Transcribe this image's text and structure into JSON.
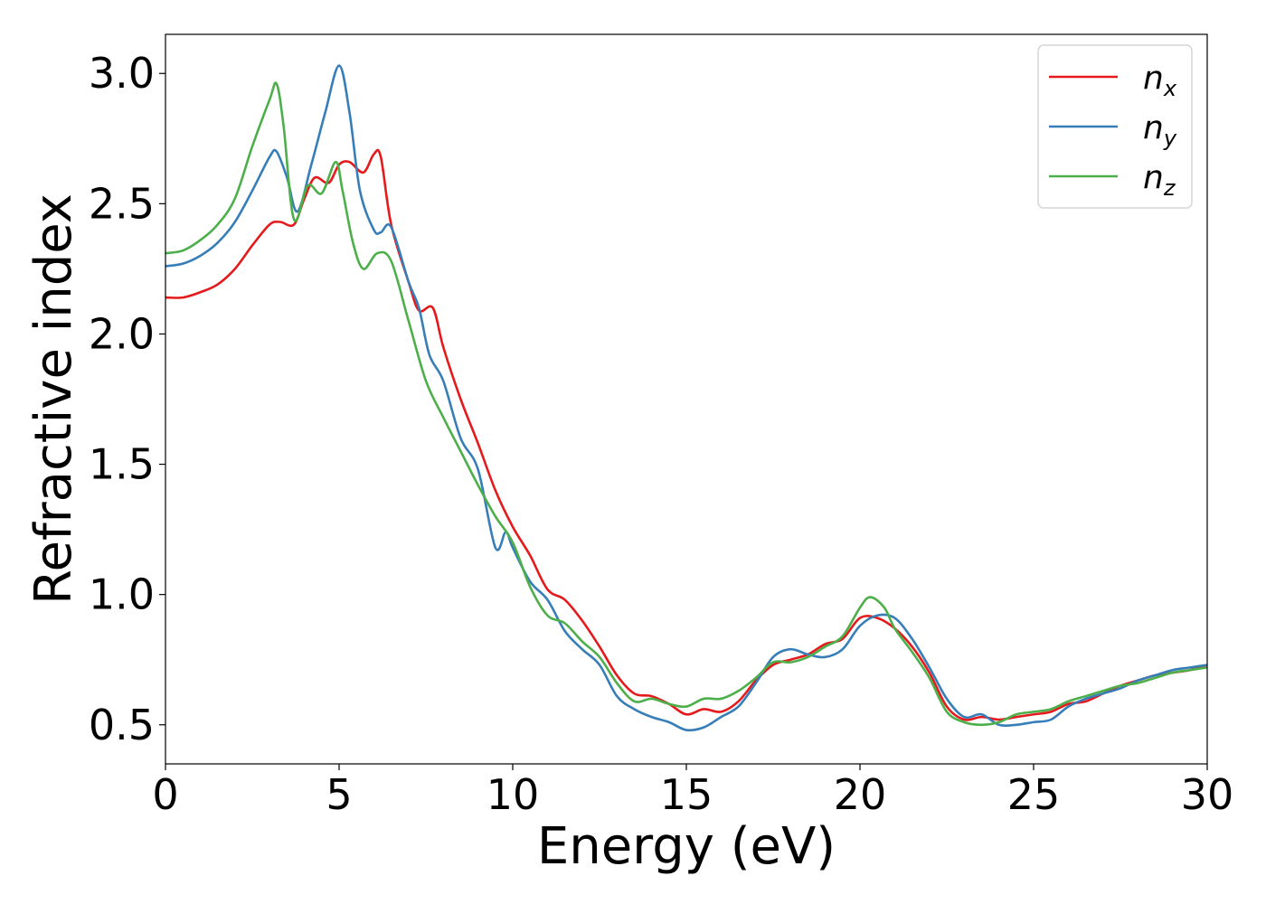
{
  "chart_data": {
    "type": "line",
    "title": "",
    "xlabel": "Energy (eV)",
    "ylabel": "Refractive index",
    "xlim": [
      0,
      30
    ],
    "ylim": [
      0.35,
      3.15
    ],
    "xticks": [
      0,
      5,
      10,
      15,
      20,
      25,
      30
    ],
    "xtick_labels": [
      "0",
      "5",
      "10",
      "15",
      "20",
      "25",
      "30"
    ],
    "yticks": [
      0.5,
      1.0,
      1.5,
      2.0,
      2.5,
      3.0
    ],
    "ytick_labels": [
      "0.5",
      "1.0",
      "1.5",
      "2.0",
      "2.5",
      "3.0"
    ],
    "grid": false,
    "legend_position": "top-right",
    "series": [
      {
        "name": "n",
        "subscript": "x",
        "color": "#e41a1c",
        "x": [
          0,
          0.5,
          1,
          1.5,
          2,
          2.5,
          3,
          3.3,
          3.7,
          4,
          4.3,
          4.7,
          5,
          5.3,
          5.7,
          6,
          6.2,
          6.5,
          7,
          7.3,
          7.7,
          8,
          8.5,
          9,
          9.5,
          10,
          10.5,
          11,
          11.5,
          12,
          12.5,
          13,
          13.5,
          14,
          14.5,
          15,
          15.5,
          16,
          16.5,
          17,
          17.5,
          18,
          18.5,
          19,
          19.5,
          20,
          20.5,
          21,
          21.5,
          22,
          22.5,
          23,
          23.5,
          24,
          24.5,
          25,
          25.5,
          26,
          26.5,
          27,
          27.5,
          28,
          28.5,
          29,
          29.5,
          30
        ],
        "values": [
          2.14,
          2.14,
          2.16,
          2.19,
          2.25,
          2.34,
          2.42,
          2.43,
          2.42,
          2.52,
          2.6,
          2.58,
          2.65,
          2.66,
          2.62,
          2.69,
          2.68,
          2.42,
          2.2,
          2.09,
          2.1,
          1.95,
          1.75,
          1.58,
          1.4,
          1.26,
          1.15,
          1.02,
          0.98,
          0.9,
          0.8,
          0.69,
          0.62,
          0.61,
          0.58,
          0.54,
          0.56,
          0.55,
          0.59,
          0.67,
          0.73,
          0.75,
          0.77,
          0.81,
          0.83,
          0.91,
          0.91,
          0.87,
          0.8,
          0.7,
          0.57,
          0.52,
          0.53,
          0.52,
          0.53,
          0.54,
          0.55,
          0.58,
          0.59,
          0.62,
          0.65,
          0.67,
          0.69,
          0.7,
          0.71,
          0.73
        ]
      },
      {
        "name": "n",
        "subscript": "y",
        "color": "#377eb8",
        "x": [
          0,
          0.5,
          1,
          1.5,
          2,
          2.5,
          3,
          3.2,
          3.5,
          3.8,
          4.2,
          4.6,
          5,
          5.3,
          5.6,
          6,
          6.2,
          6.5,
          7,
          7.3,
          7.6,
          8,
          8.5,
          9,
          9.5,
          9.8,
          10,
          10.5,
          11,
          11.5,
          12,
          12.5,
          13,
          13.5,
          14,
          14.5,
          15,
          15.5,
          16,
          16.5,
          17,
          17.5,
          18,
          18.5,
          19,
          19.5,
          20,
          20.5,
          21,
          21.5,
          22,
          22.5,
          23,
          23.5,
          24,
          24.5,
          25,
          25.5,
          26,
          26.5,
          27,
          27.5,
          28,
          28.5,
          29,
          29.5,
          30
        ],
        "values": [
          2.26,
          2.27,
          2.3,
          2.35,
          2.43,
          2.55,
          2.68,
          2.7,
          2.6,
          2.47,
          2.65,
          2.85,
          3.03,
          2.85,
          2.55,
          2.4,
          2.39,
          2.41,
          2.2,
          2.1,
          1.92,
          1.82,
          1.6,
          1.48,
          1.18,
          1.24,
          1.18,
          1.05,
          0.98,
          0.86,
          0.79,
          0.73,
          0.61,
          0.56,
          0.53,
          0.51,
          0.48,
          0.49,
          0.53,
          0.57,
          0.66,
          0.76,
          0.79,
          0.77,
          0.76,
          0.79,
          0.88,
          0.92,
          0.91,
          0.83,
          0.72,
          0.6,
          0.53,
          0.54,
          0.5,
          0.5,
          0.51,
          0.52,
          0.57,
          0.6,
          0.62,
          0.64,
          0.67,
          0.69,
          0.71,
          0.72,
          0.73
        ]
      },
      {
        "name": "n",
        "subscript": "z",
        "color": "#4daf4a",
        "x": [
          0,
          0.5,
          1,
          1.5,
          2,
          2.5,
          3,
          3.2,
          3.4,
          3.7,
          4.1,
          4.5,
          4.9,
          5.1,
          5.4,
          5.7,
          6.1,
          6.5,
          7,
          7.5,
          8,
          8.5,
          9,
          9.5,
          10,
          10.5,
          11,
          11.5,
          12,
          12.5,
          13,
          13.5,
          14,
          14.5,
          15,
          15.5,
          16,
          16.5,
          17,
          17.5,
          18,
          18.5,
          19,
          19.5,
          20,
          20.3,
          20.7,
          21,
          21.5,
          22,
          22.5,
          23,
          23.5,
          24,
          24.5,
          25,
          25.5,
          26,
          26.5,
          27,
          27.5,
          28,
          28.5,
          29,
          29.5,
          30
        ],
        "values": [
          2.31,
          2.32,
          2.36,
          2.42,
          2.52,
          2.72,
          2.9,
          2.96,
          2.8,
          2.44,
          2.57,
          2.54,
          2.66,
          2.55,
          2.35,
          2.25,
          2.31,
          2.28,
          2.05,
          1.82,
          1.68,
          1.55,
          1.42,
          1.3,
          1.2,
          1.03,
          0.92,
          0.89,
          0.82,
          0.76,
          0.66,
          0.59,
          0.6,
          0.58,
          0.57,
          0.6,
          0.6,
          0.63,
          0.68,
          0.74,
          0.74,
          0.76,
          0.8,
          0.84,
          0.95,
          0.99,
          0.95,
          0.87,
          0.78,
          0.68,
          0.55,
          0.51,
          0.5,
          0.51,
          0.54,
          0.55,
          0.56,
          0.59,
          0.61,
          0.63,
          0.65,
          0.66,
          0.68,
          0.7,
          0.71,
          0.72
        ]
      }
    ]
  }
}
